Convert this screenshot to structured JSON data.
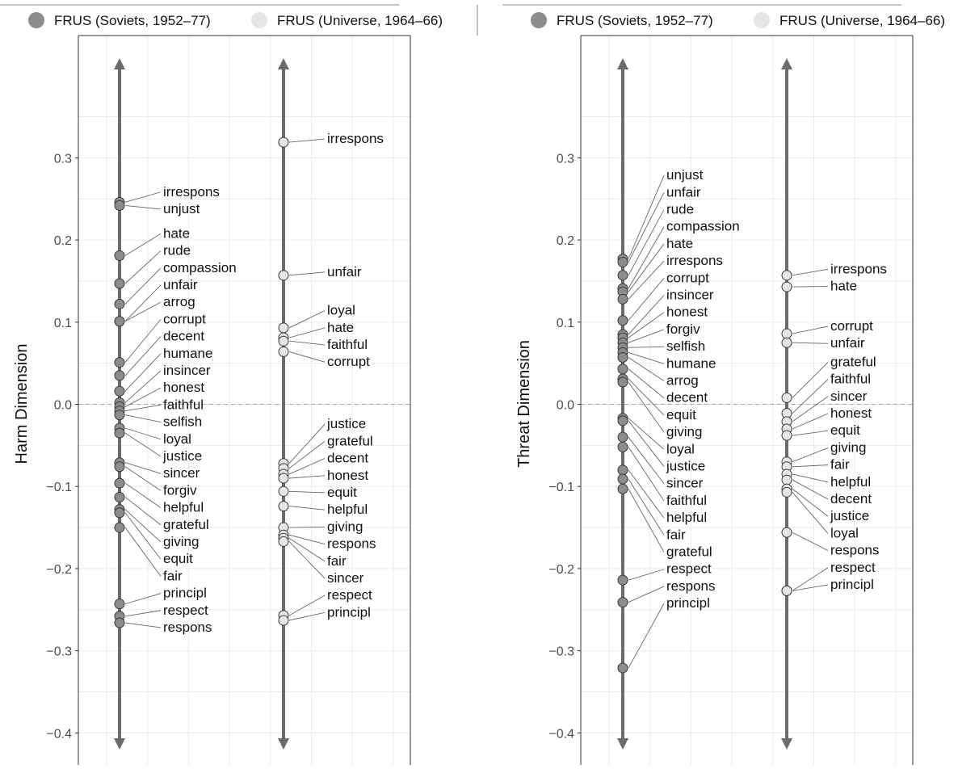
{
  "legend": {
    "series_a": "FRUS (Soviets, 1952–77)",
    "series_b": "FRUS (Universe, 1964–66)",
    "color_a": "#8c8c8c",
    "color_b": "#e6e6e6"
  },
  "colors": {
    "axis_line": "#6b6b6b",
    "grid": "#ebebeb",
    "zero_line": "#a6a6a6",
    "panel_border": "#333333",
    "leader": "#666666",
    "label_text": "#111111"
  },
  "chart_data": [
    {
      "type": "scatter",
      "ylabel": "Harm Dimension",
      "ylim": [
        -0.42,
        0.42
      ],
      "yticks": [
        0.3,
        0.2,
        0.1,
        0.0,
        -0.1,
        -0.2,
        -0.3,
        -0.4
      ],
      "ytick_labels": [
        "0.3",
        "0.2",
        "0.1",
        "0.0",
        "−0.1",
        "−0.2",
        "−0.3",
        "−0.4"
      ],
      "grid": true,
      "legend_position": "top",
      "series": [
        {
          "name": "FRUS (Soviets, 1952–77)",
          "points": [
            {
              "label": "irrespons",
              "value": 0.246
            },
            {
              "label": "unjust",
              "value": 0.242
            },
            {
              "label": "hate",
              "value": 0.181
            },
            {
              "label": "rude",
              "value": 0.147
            },
            {
              "label": "compassion",
              "value": 0.122
            },
            {
              "label": "unfair",
              "value": 0.101
            },
            {
              "label": "arrog",
              "value": 0.101
            },
            {
              "label": "corrupt",
              "value": 0.051
            },
            {
              "label": "decent",
              "value": 0.035
            },
            {
              "label": "humane",
              "value": 0.016
            },
            {
              "label": "insincer",
              "value": 0.002
            },
            {
              "label": "honest",
              "value": -0.003
            },
            {
              "label": "faithful",
              "value": -0.008
            },
            {
              "label": "selfish",
              "value": -0.013
            },
            {
              "label": "loyal",
              "value": -0.029
            },
            {
              "label": "justice",
              "value": -0.035
            },
            {
              "label": "sincer",
              "value": -0.071
            },
            {
              "label": "forgiv",
              "value": -0.076
            },
            {
              "label": "helpful",
              "value": -0.096
            },
            {
              "label": "grateful",
              "value": -0.113
            },
            {
              "label": "giving",
              "value": -0.128
            },
            {
              "label": "equit",
              "value": -0.132
            },
            {
              "label": "fair",
              "value": -0.15
            },
            {
              "label": "principl",
              "value": -0.243
            },
            {
              "label": "respect",
              "value": -0.258
            },
            {
              "label": "respons",
              "value": -0.266
            }
          ]
        },
        {
          "name": "FRUS (Universe, 1964–66)",
          "points": [
            {
              "label": "irrespons",
              "value": 0.319
            },
            {
              "label": "unfair",
              "value": 0.157
            },
            {
              "label": "loyal",
              "value": 0.093
            },
            {
              "label": "hate",
              "value": 0.081
            },
            {
              "label": "faithful",
              "value": 0.077
            },
            {
              "label": "corrupt",
              "value": 0.064
            },
            {
              "label": "justice",
              "value": -0.072
            },
            {
              "label": "grateful",
              "value": -0.078
            },
            {
              "label": "decent",
              "value": -0.085
            },
            {
              "label": "honest",
              "value": -0.09
            },
            {
              "label": "equit",
              "value": -0.106
            },
            {
              "label": "helpful",
              "value": -0.124
            },
            {
              "label": "giving",
              "value": -0.15
            },
            {
              "label": "respons",
              "value": -0.159
            },
            {
              "label": "fair",
              "value": -0.163
            },
            {
              "label": "sincer",
              "value": -0.167
            },
            {
              "label": "respect",
              "value": -0.257
            },
            {
              "label": "principl",
              "value": -0.263
            }
          ]
        }
      ]
    },
    {
      "type": "scatter",
      "ylabel": "Threat Dimension",
      "ylim": [
        -0.42,
        0.42
      ],
      "yticks": [
        0.3,
        0.2,
        0.1,
        0.0,
        -0.1,
        -0.2,
        -0.3,
        -0.4
      ],
      "ytick_labels": [
        "0.3",
        "0.2",
        "0.1",
        "0.0",
        "−0.1",
        "−0.2",
        "−0.3",
        "−0.4"
      ],
      "grid": true,
      "legend_position": "top",
      "series": [
        {
          "name": "FRUS (Soviets, 1952–77)",
          "points": [
            {
              "label": "unjust",
              "value": 0.177
            },
            {
              "label": "unfair",
              "value": 0.173
            },
            {
              "label": "rude",
              "value": 0.157
            },
            {
              "label": "compassion",
              "value": 0.141
            },
            {
              "label": "hate",
              "value": 0.137
            },
            {
              "label": "irrespons",
              "value": 0.128
            },
            {
              "label": "corrupt",
              "value": 0.102
            },
            {
              "label": "insincer",
              "value": 0.085
            },
            {
              "label": "honest",
              "value": 0.081
            },
            {
              "label": "forgiv",
              "value": 0.075
            },
            {
              "label": "selfish",
              "value": 0.069
            },
            {
              "label": "humane",
              "value": 0.063
            },
            {
              "label": "arrog",
              "value": 0.057
            },
            {
              "label": "decent",
              "value": 0.043
            },
            {
              "label": "equit",
              "value": 0.031
            },
            {
              "label": "giving",
              "value": 0.027
            },
            {
              "label": "loyal",
              "value": -0.017
            },
            {
              "label": "justice",
              "value": -0.02
            },
            {
              "label": "sincer",
              "value": -0.04
            },
            {
              "label": "faithful",
              "value": -0.052
            },
            {
              "label": "helpful",
              "value": -0.08
            },
            {
              "label": "fair",
              "value": -0.091
            },
            {
              "label": "grateful",
              "value": -0.103
            },
            {
              "label": "respect",
              "value": -0.214
            },
            {
              "label": "respons",
              "value": -0.241
            },
            {
              "label": "principl",
              "value": -0.321
            }
          ]
        },
        {
          "name": "FRUS (Universe, 1964–66)",
          "points": [
            {
              "label": "irrespons",
              "value": 0.157
            },
            {
              "label": "hate",
              "value": 0.143
            },
            {
              "label": "corrupt",
              "value": 0.086
            },
            {
              "label": "unfair",
              "value": 0.075
            },
            {
              "label": "grateful",
              "value": 0.008
            },
            {
              "label": "faithful",
              "value": -0.011
            },
            {
              "label": "sincer",
              "value": -0.021
            },
            {
              "label": "honest",
              "value": -0.03
            },
            {
              "label": "equit",
              "value": -0.038
            },
            {
              "label": "giving",
              "value": -0.07
            },
            {
              "label": "fair",
              "value": -0.076
            },
            {
              "label": "helpful",
              "value": -0.085
            },
            {
              "label": "decent",
              "value": -0.092
            },
            {
              "label": "justice",
              "value": -0.103
            },
            {
              "label": "loyal",
              "value": -0.107
            },
            {
              "label": "respons",
              "value": -0.156
            },
            {
              "label": "respect",
              "value": -0.227
            },
            {
              "label": "principl",
              "value": -0.227
            }
          ]
        }
      ]
    }
  ]
}
